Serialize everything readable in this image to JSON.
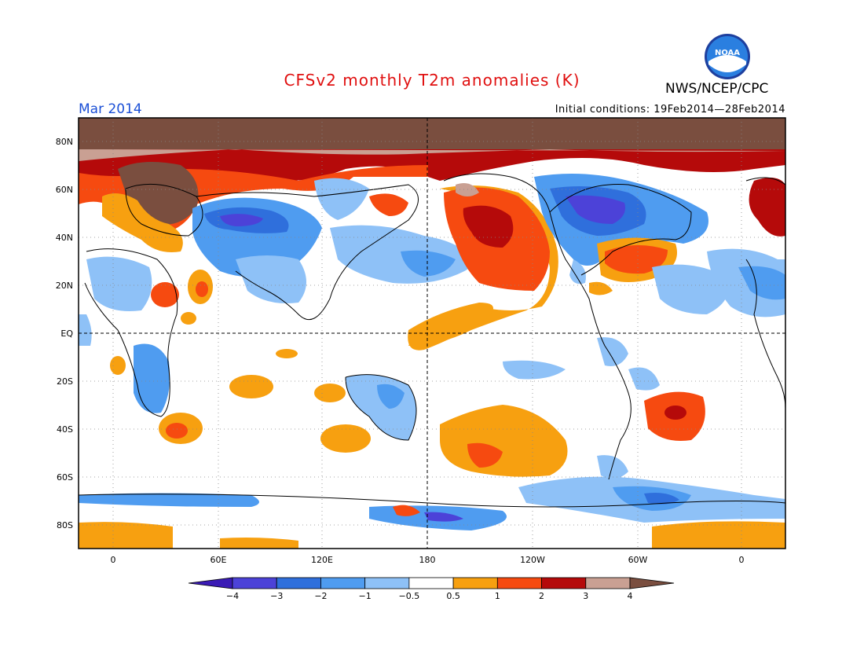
{
  "header": {
    "title": "CFSv2 monthly T2m anomalies (K)",
    "month": "Mar 2014",
    "initial_conditions": "Initial conditions: 19Feb2014—28Feb2014",
    "agency": "NWS/NCEP/CPC",
    "logo_text": "NOAA"
  },
  "map": {
    "lat_labels": [
      "80N",
      "60N",
      "40N",
      "20N",
      "EQ",
      "20S",
      "40S",
      "60S",
      "80S"
    ],
    "lon_labels": [
      "0",
      "60E",
      "120E",
      "180",
      "120W",
      "60W",
      "0"
    ]
  },
  "colorbar": {
    "labels": [
      "−4",
      "−3",
      "−2",
      "−1",
      "−0.5",
      "0.5",
      "1",
      "2",
      "3",
      "4"
    ],
    "colors": [
      "#3a1bb5",
      "#4c42d8",
      "#2f6fdc",
      "#4f9cf0",
      "#8ec1f7",
      "#ffffff",
      "#f7a010",
      "#f64a10",
      "#b50a0a",
      "#c9a093",
      "#7a4e3f"
    ]
  }
}
